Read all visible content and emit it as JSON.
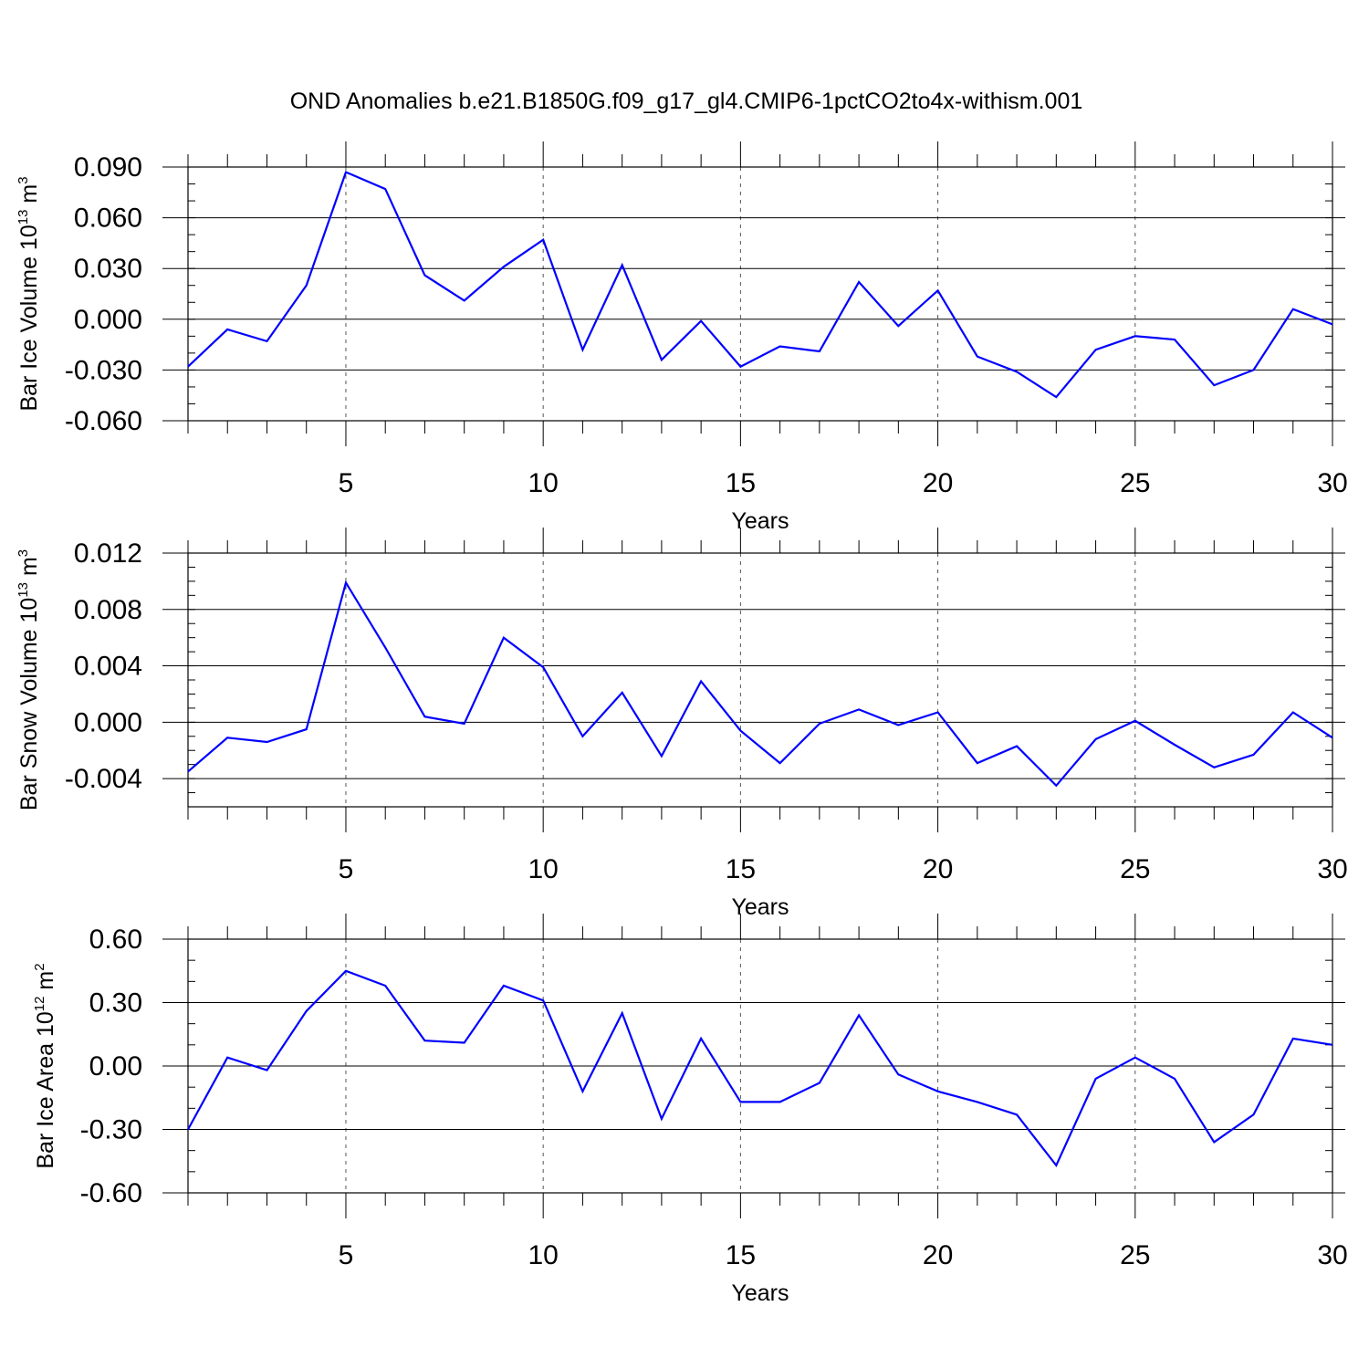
{
  "figure": {
    "title": "OND Anomalies b.e21.B1850G.f09_g17_gl4.CMIP6-1pctCO2to4x-withism.001"
  },
  "chart_data": [
    {
      "type": "line",
      "ylabel_main": "Bar Ice Volume 10",
      "ylabel_exp": "13",
      "ylabel_unit": " m",
      "ylabel_unit_exp": "3",
      "xlabel": "Years",
      "xlim": [
        1,
        30
      ],
      "ylim": [
        -0.06,
        0.09
      ],
      "xticks": [
        5,
        10,
        15,
        20,
        25,
        30
      ],
      "yticks": [
        -0.06,
        -0.03,
        0.0,
        0.03,
        0.06,
        0.09
      ],
      "ytick_labels": [
        "-0.060",
        "-0.030",
        "0.000",
        "0.030",
        "0.060",
        "0.090"
      ],
      "ygrid_step": 0.01,
      "x": [
        1,
        2,
        3,
        4,
        5,
        6,
        7,
        8,
        9,
        10,
        11,
        12,
        13,
        14,
        15,
        16,
        17,
        18,
        19,
        20,
        21,
        22,
        23,
        24,
        25,
        26,
        27,
        28,
        29,
        30
      ],
      "series": [
        {
          "color": "#0000ff",
          "values": [
            -0.028,
            -0.006,
            -0.013,
            0.02,
            0.087,
            0.077,
            0.026,
            0.011,
            0.031,
            0.047,
            -0.018,
            0.032,
            -0.024,
            -0.001,
            -0.028,
            -0.016,
            -0.019,
            0.022,
            -0.004,
            0.017,
            -0.022,
            -0.031,
            -0.046,
            -0.018,
            -0.01,
            -0.012,
            -0.039,
            -0.03,
            0.006,
            -0.003
          ]
        }
      ]
    },
    {
      "type": "line",
      "ylabel_main": "Bar Snow Volume 10",
      "ylabel_exp": "13",
      "ylabel_unit": " m",
      "ylabel_unit_exp": "3",
      "xlabel": "Years",
      "xlim": [
        1,
        30
      ],
      "ylim": [
        -0.006,
        0.012
      ],
      "xticks": [
        5,
        10,
        15,
        20,
        25,
        30
      ],
      "yticks": [
        -0.004,
        0.0,
        0.004,
        0.008,
        0.012
      ],
      "ytick_labels": [
        "-0.004",
        "0.000",
        "0.004",
        "0.008",
        "0.012"
      ],
      "ygrid_step": 0.001,
      "x": [
        1,
        2,
        3,
        4,
        5,
        6,
        7,
        8,
        9,
        10,
        11,
        12,
        13,
        14,
        15,
        16,
        17,
        18,
        19,
        20,
        21,
        22,
        23,
        24,
        25,
        26,
        27,
        28,
        29,
        30
      ],
      "series": [
        {
          "color": "#0000ff",
          "values": [
            -0.0035,
            -0.0011,
            -0.0014,
            -0.0005,
            0.0099,
            0.0053,
            0.0004,
            -0.0001,
            0.006,
            0.0039,
            -0.001,
            0.0021,
            -0.0024,
            0.0029,
            -0.0006,
            -0.0029,
            -0.0001,
            0.0009,
            -0.0002,
            0.0007,
            -0.0029,
            -0.0017,
            -0.0045,
            -0.0012,
            0.0001,
            -0.0016,
            -0.0032,
            -0.0023,
            0.0007,
            -0.0011
          ]
        }
      ]
    },
    {
      "type": "line",
      "ylabel_main": "Bar Ice Area 10",
      "ylabel_exp": "12",
      "ylabel_unit": " m",
      "ylabel_unit_exp": "2",
      "xlabel": "Years",
      "xlim": [
        1,
        30
      ],
      "ylim": [
        -0.6,
        0.6
      ],
      "xticks": [
        5,
        10,
        15,
        20,
        25,
        30
      ],
      "yticks": [
        -0.6,
        -0.3,
        0.0,
        0.3,
        0.6
      ],
      "ytick_labels": [
        "-0.60",
        "-0.30",
        "0.00",
        "0.30",
        "0.60"
      ],
      "ygrid_step": 0.1,
      "x": [
        1,
        2,
        3,
        4,
        5,
        6,
        7,
        8,
        9,
        10,
        11,
        12,
        13,
        14,
        15,
        16,
        17,
        18,
        19,
        20,
        21,
        22,
        23,
        24,
        25,
        26,
        27,
        28,
        29,
        30
      ],
      "series": [
        {
          "color": "#0000ff",
          "values": [
            -0.3,
            0.04,
            -0.02,
            0.26,
            0.45,
            0.38,
            0.12,
            0.11,
            0.38,
            0.31,
            -0.12,
            0.25,
            -0.25,
            0.13,
            -0.17,
            -0.17,
            -0.08,
            0.24,
            -0.04,
            -0.12,
            -0.17,
            -0.23,
            -0.47,
            -0.06,
            0.04,
            -0.06,
            -0.36,
            -0.23,
            0.13,
            0.1
          ]
        }
      ]
    }
  ]
}
